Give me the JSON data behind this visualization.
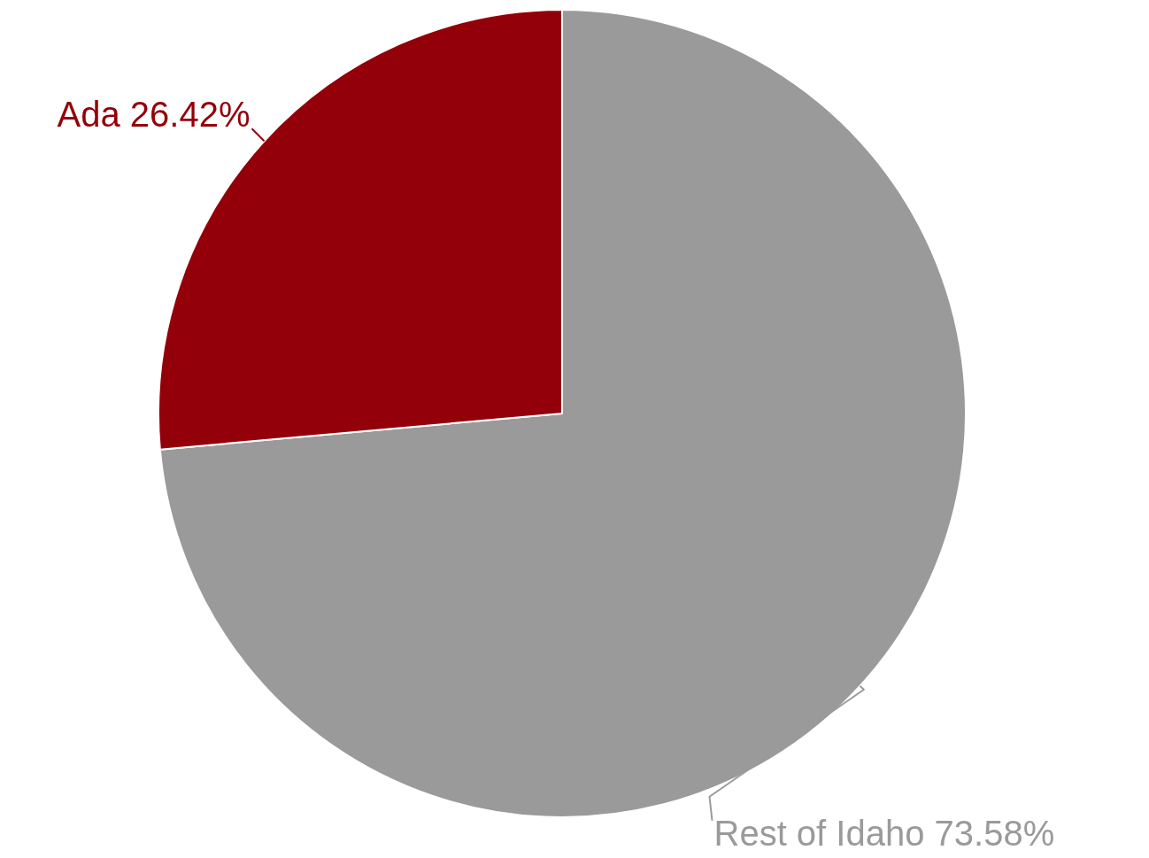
{
  "chart_data": {
    "type": "pie",
    "categories": [
      "Rest of Idaho",
      "Ada"
    ],
    "values": [
      73.58,
      26.42
    ],
    "colors": [
      "#9a9a9a",
      "#940009"
    ],
    "value_labels": [
      "73.58%",
      "26.42%"
    ],
    "legend": false
  }
}
